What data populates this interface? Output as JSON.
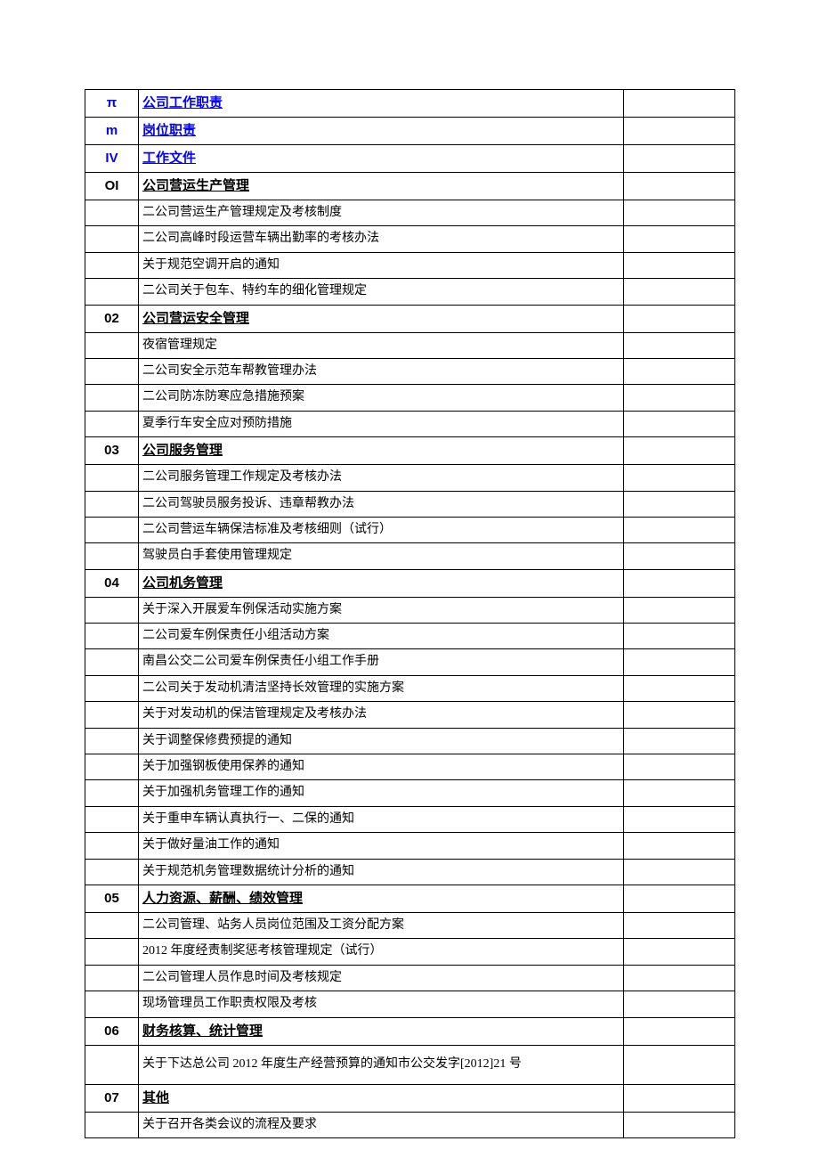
{
  "rows": [
    {
      "code": "π",
      "codeColor": "#0000ff",
      "title": "公司工作职责",
      "isLink": true,
      "isSection": true
    },
    {
      "code": "m",
      "codeColor": "#0000ff",
      "title": "岗位职责",
      "isLink": true,
      "isSection": true
    },
    {
      "code": "IV",
      "codeColor": "#0000ff",
      "title": "工作文件",
      "isLink": true,
      "isSection": true
    },
    {
      "code": "OI",
      "codeColor": "#000000",
      "title": "公司营运生产管理",
      "isLink": false,
      "isSection": true
    },
    {
      "code": "",
      "title": "二公司营运生产管理规定及考核制度",
      "isSection": false
    },
    {
      "code": "",
      "title": "二公司高峰时段运营车辆出勤率的考核办法",
      "isSection": false
    },
    {
      "code": "",
      "title": "关于规范空调开启的通知",
      "isSection": false
    },
    {
      "code": "",
      "title": "二公司关于包车、特约车的细化管理规定",
      "isSection": false
    },
    {
      "code": "02",
      "codeColor": "#000000",
      "title": "公司营运安全管理",
      "isLink": false,
      "isSection": true
    },
    {
      "code": "",
      "title": "夜宿管理规定",
      "isSection": false
    },
    {
      "code": "",
      "title": "二公司安全示范车帮教管理办法",
      "isSection": false
    },
    {
      "code": "",
      "title": "二公司防冻防寒应急措施预案",
      "isSection": false
    },
    {
      "code": "",
      "title": "夏季行车安全应对预防措施",
      "isSection": false
    },
    {
      "code": "03",
      "codeColor": "#000000",
      "title": "公司服务管理",
      "isLink": false,
      "isSection": true
    },
    {
      "code": "",
      "title": "二公司服务管理工作规定及考核办法",
      "isSection": false
    },
    {
      "code": "",
      "title": "二公司驾驶员服务投诉、违章帮教办法",
      "isSection": false
    },
    {
      "code": "",
      "title": "二公司营运车辆保洁标准及考核细则（试行）",
      "isSection": false
    },
    {
      "code": "",
      "title": "驾驶员白手套使用管理规定",
      "isSection": false
    },
    {
      "code": "04",
      "codeColor": "#000000",
      "title": "公司机务管理",
      "isLink": false,
      "isSection": true
    },
    {
      "code": "",
      "title": "关于深入开展爱车例保活动实施方案",
      "isSection": false
    },
    {
      "code": "",
      "title": "二公司爱车例保责任小组活动方案",
      "isSection": false
    },
    {
      "code": "",
      "title": "南昌公交二公司爱车例保责任小组工作手册",
      "isSection": false
    },
    {
      "code": "",
      "title": "二公司关于发动机清洁坚持长效管理的实施方案",
      "isSection": false
    },
    {
      "code": "",
      "title": "关于对发动机的保洁管理规定及考核办法",
      "isSection": false
    },
    {
      "code": "",
      "title": "关于调整保修费预提的通知",
      "isSection": false
    },
    {
      "code": "",
      "title": "关于加强钢板使用保养的通知",
      "isSection": false
    },
    {
      "code": "",
      "title": "关于加强机务管理工作的通知",
      "isSection": false
    },
    {
      "code": "",
      "title": "关于重申车辆认真执行一、二保的通知",
      "isSection": false
    },
    {
      "code": "",
      "title": "关于做好量油工作的通知",
      "isSection": false
    },
    {
      "code": "",
      "title": "关于规范机务管理数据统计分析的通知",
      "isSection": false
    },
    {
      "code": "05",
      "codeColor": "#000000",
      "title": "人力资源、薪酬、绩效管理",
      "isLink": false,
      "isSection": true
    },
    {
      "code": "",
      "title": "二公司管理、站务人员岗位范围及工资分配方案",
      "isSection": false
    },
    {
      "code": "",
      "title": "2012 年度经责制奖惩考核管理规定（试行）",
      "isSection": false
    },
    {
      "code": "",
      "title": "二公司管理人员作息时间及考核规定",
      "isSection": false
    },
    {
      "code": "",
      "title": "现场管理员工作职责权限及考核",
      "isSection": false
    },
    {
      "code": "06",
      "codeColor": "#000000",
      "title": "财务核算、统计管理",
      "isLink": false,
      "isSection": true
    },
    {
      "code": "",
      "title": "关于下达总公司 2012 年度生产经营预算的通知市公交发字[2012]21 号",
      "isSection": false,
      "tall": true
    },
    {
      "code": "07",
      "codeColor": "#000000",
      "title": "其他",
      "isLink": false,
      "isSection": true
    },
    {
      "code": "",
      "title": "关于召开各类会议的流程及要求",
      "isSection": false
    }
  ]
}
